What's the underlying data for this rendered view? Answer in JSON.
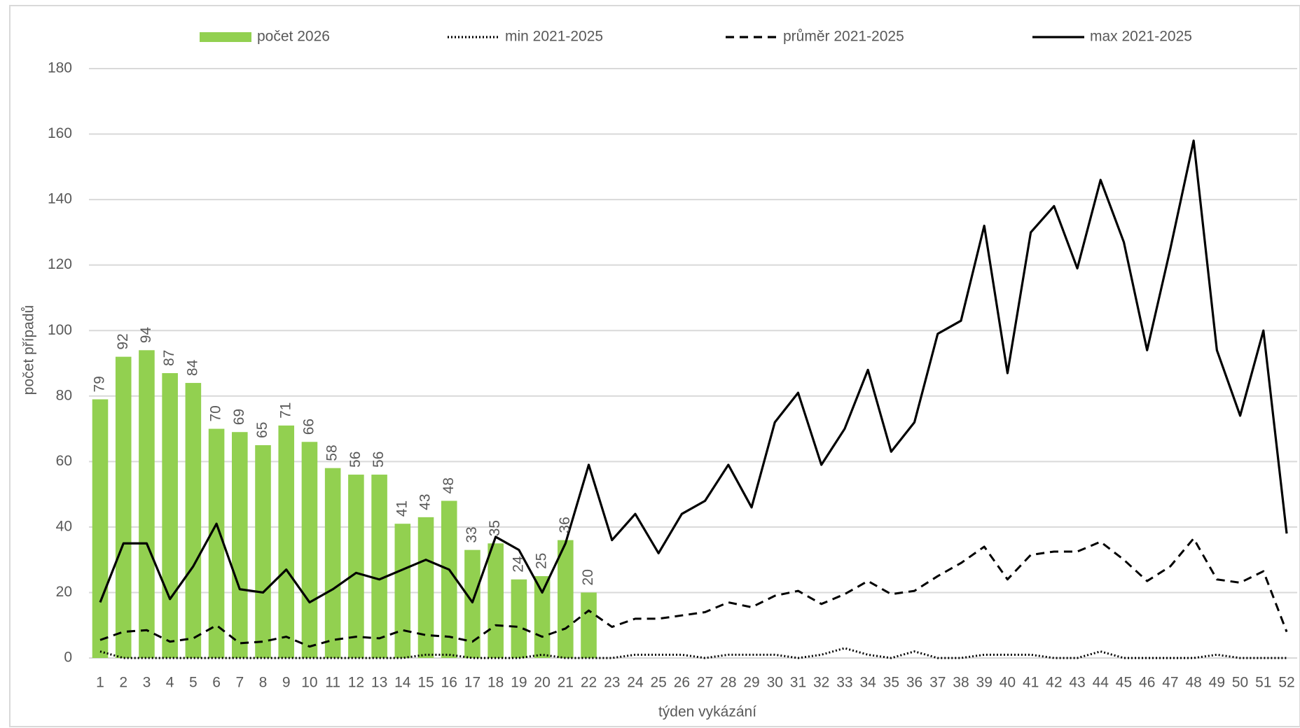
{
  "chart_data": {
    "type": "bar",
    "x_label": "týden vykázání",
    "y_label": "počet případů",
    "categories": [
      "1",
      "2",
      "3",
      "4",
      "5",
      "6",
      "7",
      "8",
      "9",
      "10",
      "11",
      "12",
      "13",
      "14",
      "15",
      "16",
      "17",
      "18",
      "19",
      "20",
      "21",
      "22",
      "23",
      "24",
      "25",
      "26",
      "27",
      "28",
      "29",
      "30",
      "31",
      "32",
      "33",
      "34",
      "35",
      "36",
      "37",
      "38",
      "39",
      "40",
      "41",
      "42",
      "43",
      "44",
      "45",
      "46",
      "47",
      "48",
      "49",
      "50",
      "51",
      "52"
    ],
    "series": [
      {
        "name": "počet 2026",
        "type": "bar",
        "color": "#92d050",
        "values": [
          79,
          92,
          94,
          87,
          84,
          70,
          69,
          65,
          71,
          66,
          58,
          56,
          56,
          41,
          43,
          48,
          33,
          35,
          24,
          25,
          36,
          20,
          null,
          null,
          null,
          null,
          null,
          null,
          null,
          null,
          null,
          null,
          null,
          null,
          null,
          null,
          null,
          null,
          null,
          null,
          null,
          null,
          null,
          null,
          null,
          null,
          null,
          null,
          null,
          null,
          null,
          null
        ]
      },
      {
        "name": "min 2021-2025",
        "type": "line",
        "dash": "dotted",
        "color": "#000000",
        "values": [
          2,
          0,
          0,
          0,
          0,
          0,
          0,
          0,
          0,
          0,
          0,
          0,
          0,
          0,
          1,
          1,
          0,
          0,
          0,
          1,
          0,
          0,
          0,
          1,
          1,
          1,
          0,
          1,
          1,
          1,
          0,
          1,
          3,
          1,
          0,
          2,
          0,
          0,
          1,
          1,
          1,
          0,
          0,
          2,
          0,
          0,
          0,
          0,
          1,
          0,
          0,
          0
        ]
      },
      {
        "name": "průměr 2021-2025",
        "type": "line",
        "dash": "dashed",
        "color": "#000000",
        "values": [
          5.5,
          8,
          8.5,
          5,
          6,
          10,
          4.5,
          5,
          6.5,
          3.5,
          5.5,
          6.5,
          6,
          8.5,
          7,
          6.5,
          5,
          10,
          9.5,
          6.5,
          9,
          14.5,
          9.5,
          12,
          12,
          13,
          14,
          17,
          15.5,
          19,
          20.5,
          16.5,
          19.5,
          23.5,
          19.5,
          20.5,
          25,
          29,
          34,
          24,
          31.5,
          32.5,
          32.5,
          35.5,
          30,
          23.5,
          28,
          36.5,
          24,
          23,
          26.5,
          8
        ]
      },
      {
        "name": "max 2021-2025",
        "type": "line",
        "dash": "solid",
        "color": "#000000",
        "values": [
          17,
          35,
          35,
          18,
          28,
          41,
          21,
          20,
          27,
          17,
          21,
          26,
          24,
          27,
          30,
          27,
          17,
          37,
          33,
          20,
          35,
          59,
          36,
          44,
          32,
          44,
          48,
          59,
          46,
          72,
          81,
          59,
          70,
          88,
          63,
          72,
          99,
          103,
          132,
          87,
          130,
          138,
          119,
          146,
          127,
          94,
          125,
          158,
          94,
          74,
          100,
          38
        ]
      }
    ],
    "ylim": [
      0,
      180
    ],
    "yticks": [
      0,
      20,
      40,
      60,
      80,
      100,
      120,
      140,
      160,
      180
    ],
    "grid": true
  }
}
